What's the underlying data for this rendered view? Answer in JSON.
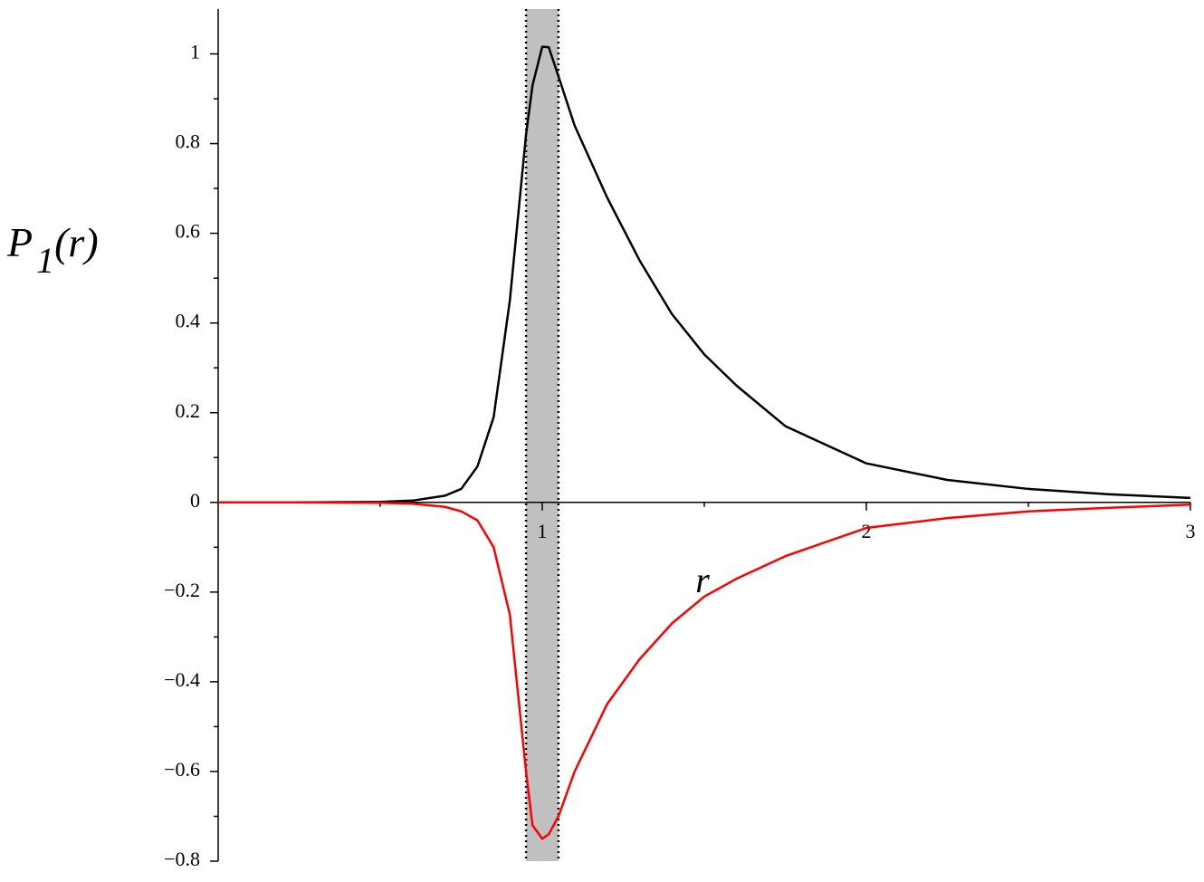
{
  "chart_data": {
    "type": "line",
    "y_label": {
      "symbol": "P",
      "subscript": "1",
      "argument": "(r)"
    },
    "x_label": "r",
    "xlim": [
      0,
      3
    ],
    "ylim": [
      -0.8,
      1.1
    ],
    "xticks": [
      1,
      2,
      3
    ],
    "xminorticks": [
      0.5,
      1.5,
      2.5
    ],
    "yticks": [
      {
        "value": -0.8,
        "label": "−0.8"
      },
      {
        "value": -0.6,
        "label": "−0.6"
      },
      {
        "value": -0.4,
        "label": "−0.4"
      },
      {
        "value": -0.2,
        "label": "−0.2"
      },
      0,
      0.2,
      0.4,
      0.6,
      0.8,
      1
    ],
    "yminorticks": [
      -0.7,
      -0.5,
      -0.3,
      -0.1,
      0.1,
      0.3,
      0.5,
      0.7,
      0.9
    ],
    "band": [
      0.95,
      1.05
    ],
    "band_color": "#c0c0c0",
    "x": [
      0,
      0.25,
      0.5,
      0.6,
      0.7,
      0.75,
      0.8,
      0.85,
      0.9,
      0.95,
      0.97,
      1.0,
      1.02,
      1.05,
      1.1,
      1.2,
      1.3,
      1.4,
      1.5,
      1.6,
      1.75,
      2.0,
      2.25,
      2.5,
      2.75,
      3.0
    ],
    "series": [
      {
        "color": "#000000",
        "values": [
          0,
          0,
          0.001,
          0.004,
          0.015,
          0.03,
          0.08,
          0.19,
          0.45,
          0.82,
          0.93,
          1.016,
          1.015,
          0.95,
          0.84,
          0.68,
          0.54,
          0.42,
          0.33,
          0.26,
          0.17,
          0.087,
          0.05,
          0.03,
          0.018,
          0.01
        ]
      },
      {
        "color": "#ff0000",
        "values": [
          0,
          0,
          -0.001,
          -0.003,
          -0.01,
          -0.02,
          -0.04,
          -0.1,
          -0.25,
          -0.6,
          -0.72,
          -0.75,
          -0.74,
          -0.7,
          -0.6,
          -0.45,
          -0.35,
          -0.27,
          -0.21,
          -0.17,
          -0.12,
          -0.057,
          -0.035,
          -0.02,
          -0.012,
          -0.005
        ]
      }
    ]
  }
}
